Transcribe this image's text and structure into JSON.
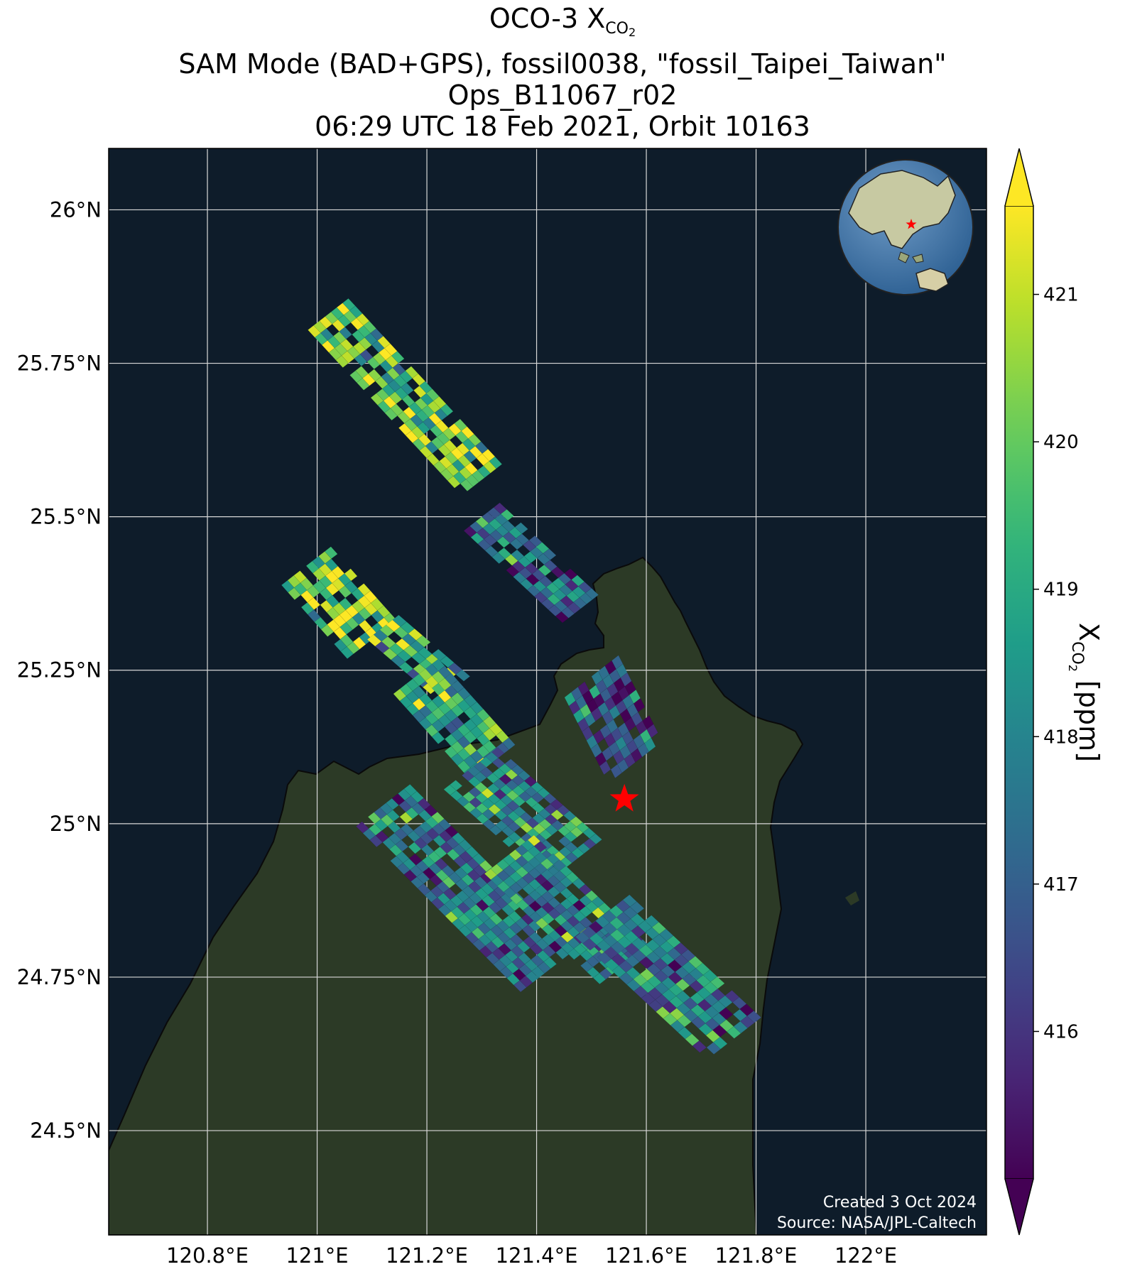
{
  "title": {
    "line1_prefix": "OCO-3 X",
    "line1_sub": "CO",
    "line1_sub2": "2",
    "line2": "SAM Mode (BAD+GPS), fossil0038, \"fossil_Taipei_Taiwan\"",
    "line3": "Ops_B11067_r02",
    "line4": "06:29 UTC 18 Feb 2021, Orbit 10163"
  },
  "map": {
    "lon_range": [
      120.62,
      122.22
    ],
    "lat_range": [
      24.33,
      26.1
    ],
    "lon_ticks": [
      {
        "value": 120.8,
        "label": "120.8°E"
      },
      {
        "value": 121.0,
        "label": "121°E"
      },
      {
        "value": 121.2,
        "label": "121.2°E"
      },
      {
        "value": 121.4,
        "label": "121.4°E"
      },
      {
        "value": 121.6,
        "label": "121.6°E"
      },
      {
        "value": 121.8,
        "label": "121.8°E"
      },
      {
        "value": 122.0,
        "label": "122°E"
      }
    ],
    "lat_ticks": [
      {
        "value": 26.0,
        "label": "26°N"
      },
      {
        "value": 25.75,
        "label": "25.75°N"
      },
      {
        "value": 25.5,
        "label": "25.5°N"
      },
      {
        "value": 25.25,
        "label": "25.25°N"
      },
      {
        "value": 25.0,
        "label": "25°N"
      },
      {
        "value": 24.75,
        "label": "24.75°N"
      },
      {
        "value": 24.5,
        "label": "24.5°N"
      }
    ],
    "gridlines": true,
    "target": {
      "name": "fossil_Taipei_Taiwan",
      "lon": 121.56,
      "lat": 25.04,
      "color": "#ff0000"
    },
    "colors": {
      "ocean": "#0e1c2a",
      "land": "#2c3a26",
      "grid": "#d8d8d8",
      "coast": "#0a0a0a"
    },
    "swaths": [
      {
        "center_start": [
          121.02,
          25.83
        ],
        "center_end": [
          121.3,
          25.56
        ],
        "across_deg": 0.09,
        "along": 22,
        "across": 7,
        "value_mean": 420.0,
        "seed": 3
      },
      {
        "center_start": [
          121.3,
          25.5
        ],
        "center_end": [
          121.48,
          25.35
        ],
        "across_deg": 0.08,
        "along": 14,
        "across": 6,
        "value_mean": 417.6,
        "seed": 11
      },
      {
        "center_start": [
          120.98,
          25.42
        ],
        "center_end": [
          121.1,
          25.3
        ],
        "across_deg": 0.11,
        "along": 10,
        "across": 8,
        "value_mean": 420.4,
        "seed": 7
      },
      {
        "center_start": [
          121.12,
          25.32
        ],
        "center_end": [
          121.25,
          25.22
        ],
        "across_deg": 0.07,
        "along": 9,
        "across": 5,
        "value_mean": 419.4,
        "seed": 19
      },
      {
        "center_start": [
          121.18,
          25.24
        ],
        "center_end": [
          121.32,
          25.1
        ],
        "across_deg": 0.1,
        "along": 12,
        "across": 7,
        "value_mean": 419.0,
        "seed": 23
      },
      {
        "center_start": [
          121.28,
          25.09
        ],
        "center_end": [
          121.47,
          24.94
        ],
        "across_deg": 0.12,
        "along": 16,
        "across": 9,
        "value_mean": 418.0,
        "seed": 29
      },
      {
        "center_start": [
          121.12,
          25.03
        ],
        "center_end": [
          121.42,
          24.76
        ],
        "across_deg": 0.12,
        "along": 24,
        "across": 9,
        "value_mean": 417.6,
        "seed": 31
      },
      {
        "center_start": [
          121.35,
          24.95
        ],
        "center_end": [
          121.56,
          24.77
        ],
        "across_deg": 0.11,
        "along": 18,
        "across": 8,
        "value_mean": 418.0,
        "seed": 37
      },
      {
        "center_start": [
          121.52,
          24.85
        ],
        "center_end": [
          121.76,
          24.65
        ],
        "across_deg": 0.12,
        "along": 18,
        "across": 8,
        "value_mean": 417.6,
        "seed": 41
      },
      {
        "center_start": [
          121.5,
          25.24
        ],
        "center_end": [
          121.58,
          25.1
        ],
        "across_deg": 0.12,
        "along": 10,
        "across": 8,
        "value_mean": 416.9,
        "seed": 43
      }
    ]
  },
  "colorbar": {
    "label_prefix": "X",
    "label_sub": "CO",
    "label_sub2": "2",
    "label_suffix": " [ppm]",
    "vmin": 415.0,
    "vmax": 421.6,
    "colormap": "viridis",
    "extend": "both",
    "ticks": [
      416,
      417,
      418,
      419,
      420,
      421
    ]
  },
  "credits": {
    "line1": "Created 3 Oct 2024",
    "line2": "Source: NASA/JPL-Caltech"
  }
}
